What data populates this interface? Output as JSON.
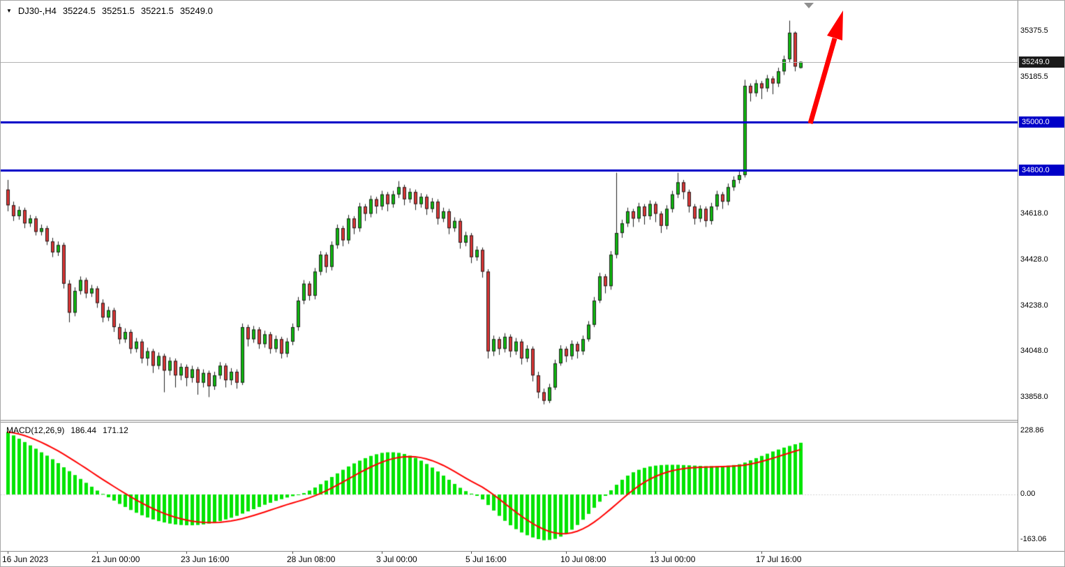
{
  "window": {
    "symbol_info": {
      "symbol": "DJ30-,H4",
      "open": "35224.5",
      "high": "35251.5",
      "low": "35221.5",
      "close": "35249.0"
    }
  },
  "icons": {
    "symbol_marker": "▼"
  },
  "price_axis": {
    "ticks": [
      {
        "label": "35375.5",
        "value": 35375.5
      },
      {
        "label": "35185.5",
        "value": 35185.5
      },
      {
        "label": "34618.0",
        "value": 34618.0
      },
      {
        "label": "34428.0",
        "value": 34428.0
      },
      {
        "label": "34238.0",
        "value": 34238.0
      },
      {
        "label": "34048.0",
        "value": 34048.0
      },
      {
        "label": "33858.0",
        "value": 33858.0
      }
    ],
    "current_price": {
      "label": "35249.0",
      "value": 35249.0,
      "bg": "#1a1a1a",
      "fg": "#ffffff"
    },
    "levels": [
      {
        "label": "35000.0",
        "value": 35000.0,
        "color": "#0000c8"
      },
      {
        "label": "34800.0",
        "value": 34800.0,
        "color": "#0000c8"
      }
    ]
  },
  "time_axis": {
    "labels": [
      {
        "text": "16 Jun 2023",
        "bar": 0
      },
      {
        "text": "21 Jun 00:00",
        "bar": 16
      },
      {
        "text": "23 Jun 16:00",
        "bar": 32
      },
      {
        "text": "28 Jun 08:00",
        "bar": 51
      },
      {
        "text": "3 Jul 00:00",
        "bar": 67
      },
      {
        "text": "5 Jul 16:00",
        "bar": 83
      },
      {
        "text": "10 Jul 08:00",
        "bar": 100
      },
      {
        "text": "13 Jul 00:00",
        "bar": 116
      },
      {
        "text": "17 Jul 16:00",
        "bar": 135
      }
    ]
  },
  "indicator": {
    "name": "MACD(12,26,9)",
    "value_main": "186.44",
    "value_signal": "171.12",
    "ticks": [
      {
        "label": "228.86",
        "value": 228.86
      },
      {
        "label": "0.00",
        "value": 0
      },
      {
        "label": "-163.06",
        "value": -163.06
      }
    ]
  },
  "annotations": {
    "arrow": {
      "color": "#ff0000",
      "direction": "up"
    }
  },
  "chart_data": {
    "type": "candlestick",
    "symbol": "DJ30-",
    "timeframe": "H4",
    "title": "DJ30-,H4 35224.5 35251.5 35221.5 35249.0",
    "price_range_visible": [
      33768,
      35503
    ],
    "grid": false,
    "up_color": "#0fb80f",
    "down_color": "#d93535",
    "levels": [
      35000.0,
      34800.0
    ],
    "current_price": 35249.0,
    "x_labels": [
      "16 Jun 2023",
      "21 Jun 00:00",
      "23 Jun 16:00",
      "28 Jun 08:00",
      "3 Jul 00:00",
      "5 Jul 16:00",
      "10 Jul 08:00",
      "13 Jul 00:00",
      "17 Jul 16:00"
    ],
    "candles": [
      [
        34720,
        34760,
        34630,
        34655
      ],
      [
        34655,
        34670,
        34590,
        34610
      ],
      [
        34610,
        34650,
        34595,
        34635
      ],
      [
        34635,
        34645,
        34560,
        34580
      ],
      [
        34580,
        34615,
        34565,
        34600
      ],
      [
        34600,
        34610,
        34530,
        34545
      ],
      [
        34545,
        34575,
        34530,
        34560
      ],
      [
        34560,
        34570,
        34490,
        34505
      ],
      [
        34505,
        34520,
        34440,
        34460
      ],
      [
        34460,
        34505,
        34445,
        34490
      ],
      [
        34490,
        34500,
        34310,
        34330
      ],
      [
        34330,
        34345,
        34170,
        34210
      ],
      [
        34210,
        34315,
        34195,
        34300
      ],
      [
        34300,
        34360,
        34285,
        34345
      ],
      [
        34345,
        34355,
        34270,
        34290
      ],
      [
        34290,
        34325,
        34275,
        34310
      ],
      [
        34310,
        34320,
        34230,
        34250
      ],
      [
        34250,
        34265,
        34170,
        34190
      ],
      [
        34190,
        34235,
        34175,
        34220
      ],
      [
        34220,
        34230,
        34130,
        34150
      ],
      [
        34150,
        34165,
        34080,
        34100
      ],
      [
        34100,
        34145,
        34085,
        34130
      ],
      [
        34130,
        34140,
        34040,
        34060
      ],
      [
        34060,
        34105,
        34045,
        34090
      ],
      [
        34090,
        34100,
        34000,
        34020
      ],
      [
        34020,
        34065,
        33990,
        34050
      ],
      [
        34050,
        34060,
        33960,
        33990
      ],
      [
        33990,
        34045,
        33975,
        34030
      ],
      [
        34030,
        34040,
        33880,
        33970
      ],
      [
        33970,
        34025,
        33950,
        34010
      ],
      [
        34010,
        34020,
        33900,
        33950
      ],
      [
        33950,
        34000,
        33930,
        33985
      ],
      [
        33985,
        33995,
        33905,
        33940
      ],
      [
        33940,
        33990,
        33920,
        33975
      ],
      [
        33975,
        33985,
        33870,
        33920
      ],
      [
        33920,
        33975,
        33900,
        33960
      ],
      [
        33960,
        33970,
        33860,
        33905
      ],
      [
        33905,
        33965,
        33890,
        33950
      ],
      [
        33950,
        34005,
        33935,
        33990
      ],
      [
        33990,
        34000,
        33900,
        33930
      ],
      [
        33930,
        33980,
        33910,
        33965
      ],
      [
        33965,
        33975,
        33895,
        33920
      ],
      [
        33920,
        34165,
        33910,
        34150
      ],
      [
        34150,
        34160,
        34070,
        34100
      ],
      [
        34100,
        34155,
        34085,
        34140
      ],
      [
        34140,
        34150,
        34060,
        34080
      ],
      [
        34080,
        34135,
        34065,
        34120
      ],
      [
        34120,
        34130,
        34040,
        34060
      ],
      [
        34060,
        34115,
        34045,
        34100
      ],
      [
        34100,
        34110,
        34020,
        34040
      ],
      [
        34040,
        34105,
        34025,
        34090
      ],
      [
        34090,
        34165,
        34075,
        34150
      ],
      [
        34150,
        34275,
        34135,
        34260
      ],
      [
        34260,
        34345,
        34245,
        34330
      ],
      [
        34330,
        34340,
        34260,
        34280
      ],
      [
        34280,
        34395,
        34265,
        34380
      ],
      [
        34380,
        34465,
        34365,
        34450
      ],
      [
        34450,
        34460,
        34375,
        34400
      ],
      [
        34400,
        34505,
        34385,
        34490
      ],
      [
        34490,
        34575,
        34475,
        34560
      ],
      [
        34560,
        34570,
        34485,
        34510
      ],
      [
        34510,
        34615,
        34495,
        34600
      ],
      [
        34600,
        34610,
        34535,
        34560
      ],
      [
        34560,
        34665,
        34545,
        34650
      ],
      [
        34650,
        34660,
        34590,
        34620
      ],
      [
        34620,
        34695,
        34605,
        34680
      ],
      [
        34680,
        34690,
        34620,
        34650
      ],
      [
        34650,
        34715,
        34635,
        34700
      ],
      [
        34700,
        34710,
        34630,
        34660
      ],
      [
        34660,
        34715,
        34645,
        34700
      ],
      [
        34700,
        34755,
        34685,
        34730
      ],
      [
        34730,
        34740,
        34655,
        34680
      ],
      [
        34680,
        34725,
        34665,
        34710
      ],
      [
        34710,
        34720,
        34635,
        34660
      ],
      [
        34660,
        34705,
        34645,
        34690
      ],
      [
        34690,
        34700,
        34615,
        34640
      ],
      [
        34640,
        34685,
        34625,
        34670
      ],
      [
        34670,
        34680,
        34575,
        34600
      ],
      [
        34600,
        34645,
        34585,
        34630
      ],
      [
        34630,
        34640,
        34535,
        34560
      ],
      [
        34560,
        34605,
        34545,
        34590
      ],
      [
        34590,
        34600,
        34475,
        34500
      ],
      [
        34500,
        34545,
        34485,
        34530
      ],
      [
        34530,
        34540,
        34415,
        34440
      ],
      [
        34440,
        34485,
        34425,
        34470
      ],
      [
        34470,
        34480,
        34355,
        34380
      ],
      [
        34380,
        34390,
        34020,
        34050
      ],
      [
        34050,
        34115,
        34030,
        34100
      ],
      [
        34100,
        34110,
        34035,
        34060
      ],
      [
        34060,
        34125,
        34045,
        34110
      ],
      [
        34110,
        34120,
        34025,
        34050
      ],
      [
        34050,
        34105,
        34035,
        34090
      ],
      [
        34090,
        34100,
        33995,
        34020
      ],
      [
        34020,
        34075,
        34005,
        34060
      ],
      [
        34060,
        34070,
        33925,
        33950
      ],
      [
        33950,
        33965,
        33855,
        33880
      ],
      [
        33880,
        33895,
        33830,
        33845
      ],
      [
        33845,
        33915,
        33835,
        33900
      ],
      [
        33900,
        34015,
        33890,
        34000
      ],
      [
        34000,
        34075,
        33990,
        34060
      ],
      [
        34060,
        34070,
        34005,
        34030
      ],
      [
        34030,
        34095,
        34015,
        34080
      ],
      [
        34080,
        34090,
        34020,
        34050
      ],
      [
        34050,
        34115,
        34035,
        34100
      ],
      [
        34100,
        34175,
        34090,
        34160
      ],
      [
        34160,
        34275,
        34150,
        34260
      ],
      [
        34260,
        34375,
        34250,
        34360
      ],
      [
        34360,
        34370,
        34290,
        34320
      ],
      [
        34320,
        34465,
        34305,
        34450
      ],
      [
        34450,
        34790,
        34435,
        34540
      ],
      [
        34540,
        34595,
        34520,
        34580
      ],
      [
        34580,
        34645,
        34565,
        34630
      ],
      [
        34630,
        34640,
        34565,
        34600
      ],
      [
        34600,
        34665,
        34585,
        34650
      ],
      [
        34650,
        34660,
        34575,
        34610
      ],
      [
        34610,
        34675,
        34595,
        34660
      ],
      [
        34660,
        34670,
        34585,
        34620
      ],
      [
        34620,
        34630,
        34540,
        34570
      ],
      [
        34570,
        34655,
        34555,
        34640
      ],
      [
        34640,
        34715,
        34625,
        34700
      ],
      [
        34700,
        34790,
        34685,
        34750
      ],
      [
        34750,
        34760,
        34680,
        34710
      ],
      [
        34710,
        34720,
        34625,
        34650
      ],
      [
        34650,
        34660,
        34575,
        34600
      ],
      [
        34600,
        34655,
        34585,
        34640
      ],
      [
        34640,
        34650,
        34565,
        34590
      ],
      [
        34590,
        34665,
        34575,
        34650
      ],
      [
        34650,
        34715,
        34635,
        34700
      ],
      [
        34700,
        34710,
        34640,
        34670
      ],
      [
        34670,
        34745,
        34655,
        34730
      ],
      [
        34730,
        34775,
        34715,
        34760
      ],
      [
        34760,
        34795,
        34745,
        34780
      ],
      [
        34780,
        35175,
        34770,
        35150
      ],
      [
        35150,
        35160,
        35085,
        35120
      ],
      [
        35120,
        35175,
        35105,
        35160
      ],
      [
        35160,
        35170,
        35095,
        35140
      ],
      [
        35140,
        35195,
        35125,
        35180
      ],
      [
        35180,
        35190,
        35115,
        35160
      ],
      [
        35160,
        35225,
        35145,
        35210
      ],
      [
        35210,
        35275,
        35195,
        35260
      ],
      [
        35260,
        35420,
        35245,
        35370
      ],
      [
        35370,
        35375,
        35210,
        35230
      ],
      [
        35224.5,
        35251.5,
        35221.5,
        35249.0
      ]
    ],
    "macd": {
      "name": "MACD(12,26,9)",
      "histogram_color": "#00e400",
      "signal_color": "#ff0000",
      "signal_period": 9,
      "current_main": 186.44,
      "current_signal": 171.12,
      "y_ticks": [
        228.86,
        0.0,
        -163.06
      ],
      "histogram": [
        225,
        213,
        201,
        189,
        177,
        165,
        152,
        140,
        127,
        113,
        98,
        84,
        70,
        56,
        42,
        28,
        14,
        2,
        -10,
        -22,
        -34,
        -45,
        -56,
        -66,
        -75,
        -83,
        -90,
        -96,
        -101,
        -105,
        -108,
        -110,
        -111,
        -111,
        -110,
        -108,
        -105,
        -101,
        -96,
        -90,
        -84,
        -77,
        -69,
        -61,
        -53,
        -45,
        -37,
        -30,
        -23,
        -17,
        -11,
        -6,
        -1,
        5,
        14,
        25,
        37,
        50,
        63,
        76,
        89,
        101,
        112,
        122,
        131,
        139,
        145,
        150,
        152,
        152,
        150,
        146,
        140,
        132,
        122,
        110,
        97,
        83,
        68,
        53,
        38,
        24,
        12,
        3,
        -5,
        -18,
        -38,
        -58,
        -77,
        -95,
        -111,
        -125,
        -137,
        -147,
        -155,
        -161,
        -165,
        -164,
        -160,
        -152,
        -141,
        -127,
        -110,
        -91,
        -70,
        -48,
        -26,
        -5,
        15,
        35,
        53,
        68,
        80,
        89,
        96,
        101,
        104,
        106,
        107,
        107,
        107,
        106,
        105,
        104,
        103,
        102,
        102,
        102,
        103,
        104,
        106,
        109,
        115,
        123,
        131,
        139,
        147,
        155,
        162,
        169,
        175,
        181,
        186.44
      ]
    }
  }
}
